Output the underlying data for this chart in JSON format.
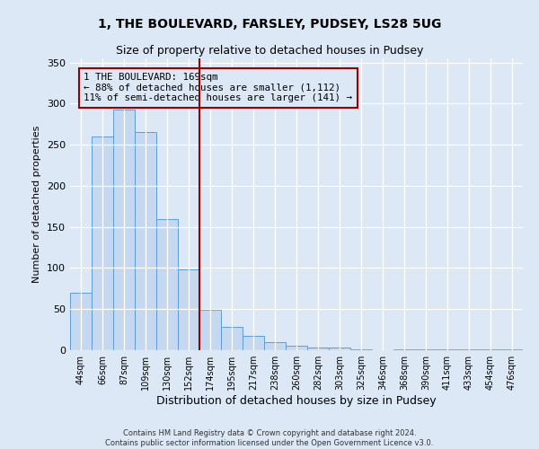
{
  "title1": "1, THE BOULEVARD, FARSLEY, PUDSEY, LS28 5UG",
  "title2": "Size of property relative to detached houses in Pudsey",
  "xlabel": "Distribution of detached houses by size in Pudsey",
  "ylabel": "Number of detached properties",
  "categories": [
    "44sqm",
    "66sqm",
    "87sqm",
    "109sqm",
    "130sqm",
    "152sqm",
    "174sqm",
    "195sqm",
    "217sqm",
    "238sqm",
    "260sqm",
    "282sqm",
    "303sqm",
    "325sqm",
    "346sqm",
    "368sqm",
    "390sqm",
    "411sqm",
    "433sqm",
    "454sqm",
    "476sqm"
  ],
  "values": [
    70,
    260,
    293,
    265,
    160,
    98,
    49,
    28,
    18,
    10,
    5,
    3,
    3,
    1,
    0,
    1,
    1,
    1,
    1,
    1,
    1
  ],
  "bar_color": "#c5d8f0",
  "bar_edge_color": "#5a9fd4",
  "vline_color": "#990000",
  "annotation_text": "1 THE BOULEVARD: 169sqm\n← 88% of detached houses are smaller (1,112)\n11% of semi-detached houses are larger (141) →",
  "annotation_box_color": "#990000",
  "ylim": [
    0,
    355
  ],
  "yticks": [
    0,
    50,
    100,
    150,
    200,
    250,
    300,
    350
  ],
  "bg_color": "#dce8f5",
  "footer1": "Contains HM Land Registry data © Crown copyright and database right 2024.",
  "footer2": "Contains public sector information licensed under the Open Government Licence v3.0."
}
